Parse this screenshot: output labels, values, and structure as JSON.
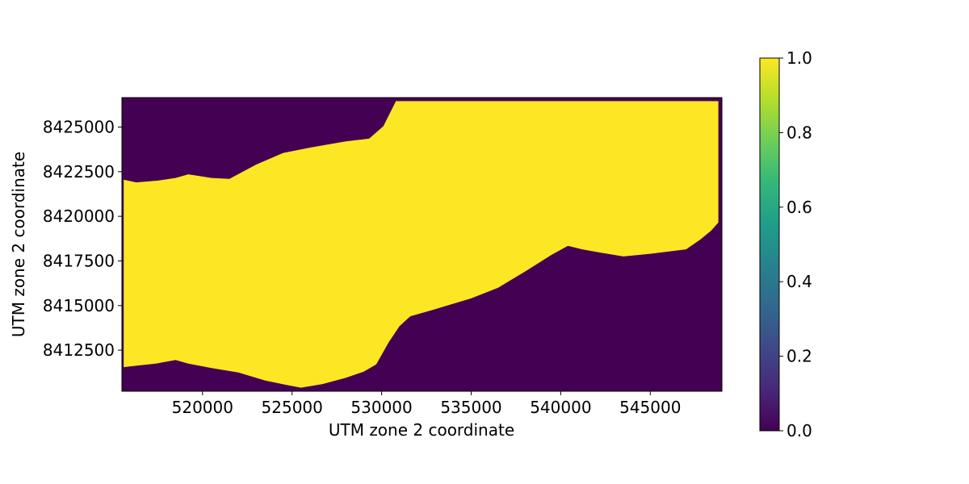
{
  "chart_data": {
    "type": "heatmap",
    "title": "",
    "xlabel": "UTM zone 2 coordinate",
    "ylabel": "UTM zone 2 coordinate",
    "xlim": [
      515500,
      549000
    ],
    "ylim": [
      8410200,
      8426650
    ],
    "x_ticks": [
      "520000",
      "525000",
      "530000",
      "535000",
      "540000",
      "545000"
    ],
    "x_tick_values": [
      520000,
      525000,
      530000,
      535000,
      540000,
      545000
    ],
    "y_ticks": [
      "8412500",
      "8415000",
      "8417500",
      "8420000",
      "8422500",
      "8425000"
    ],
    "y_tick_values": [
      8412500,
      8415000,
      8417500,
      8420000,
      8422500,
      8425000
    ],
    "value_inside": 1.0,
    "value_outside": 0.0,
    "colormap": "viridis",
    "color_low": "#440154",
    "color_high": "#fde725",
    "data_x_range": [
      515600,
      548800
    ],
    "data_y_range": [
      8410350,
      8426450
    ],
    "upper_boundary": {
      "x": [
        515600,
        516300,
        517500,
        518500,
        519200,
        520500,
        521500,
        523000,
        524500,
        526000,
        528000,
        529300,
        530100,
        530800,
        535000,
        540000,
        545000,
        548800
      ],
      "y": [
        8422050,
        8421900,
        8422000,
        8422150,
        8422350,
        8422150,
        8422100,
        8422900,
        8423550,
        8423850,
        8424200,
        8424350,
        8425050,
        8426450,
        8426450,
        8426450,
        8426450,
        8426450
      ]
    },
    "lower_boundary": {
      "x": [
        515600,
        516500,
        517400,
        518500,
        519200,
        520500,
        522000,
        523500,
        524700,
        525500,
        526700,
        528000,
        529000,
        529700,
        530400,
        531000,
        531600,
        533000,
        535000,
        536500,
        538000,
        539500,
        540400,
        541200,
        542300,
        543500,
        545000,
        547000,
        547800,
        548400,
        548800
      ],
      "y": [
        8411550,
        8411650,
        8411750,
        8411950,
        8411750,
        8411500,
        8411250,
        8410800,
        8410550,
        8410400,
        8410600,
        8410950,
        8411300,
        8411700,
        8412950,
        8413850,
        8414400,
        8414800,
        8415400,
        8416000,
        8416900,
        8417850,
        8418350,
        8418150,
        8417950,
        8417750,
        8417900,
        8418150,
        8418700,
        8419200,
        8419650
      ]
    },
    "colorbar": {
      "ticks": [
        "0.0",
        "0.2",
        "0.4",
        "0.6",
        "0.8",
        "1.0"
      ],
      "tick_values": [
        0.0,
        0.2,
        0.4,
        0.6,
        0.8,
        1.0
      ],
      "stops": [
        "#440154",
        "#482878",
        "#3e4989",
        "#31688e",
        "#26828e",
        "#1f9e89",
        "#35b779",
        "#6ece58",
        "#b5de2b",
        "#fde725"
      ]
    }
  }
}
